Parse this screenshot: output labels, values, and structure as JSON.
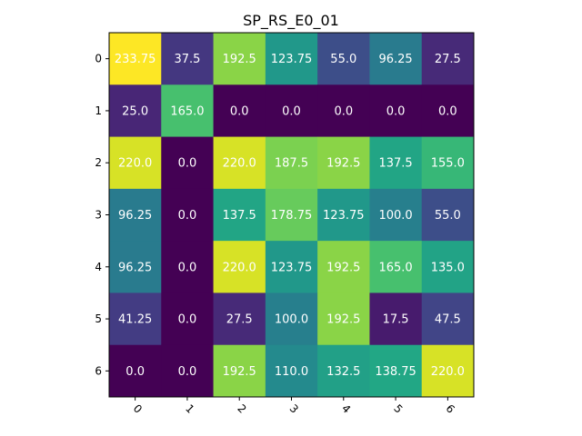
{
  "chart_data": {
    "type": "heatmap",
    "title": "SP_RS_E0_01",
    "x_labels": [
      "0",
      "1",
      "2",
      "3",
      "4",
      "5",
      "6"
    ],
    "y_labels": [
      "0",
      "1",
      "2",
      "3",
      "4",
      "5",
      "6"
    ],
    "colormap": "viridis",
    "value_range": [
      0,
      233.75
    ],
    "cell_text_color": "#ffffff",
    "values": [
      [
        233.75,
        37.5,
        192.5,
        123.75,
        55.0,
        96.25,
        27.5
      ],
      [
        25.0,
        165.0,
        0.0,
        0.0,
        0.0,
        0.0,
        0.0
      ],
      [
        220.0,
        0.0,
        220.0,
        187.5,
        192.5,
        137.5,
        155.0
      ],
      [
        96.25,
        0.0,
        137.5,
        178.75,
        123.75,
        100.0,
        55.0
      ],
      [
        96.25,
        0.0,
        220.0,
        123.75,
        192.5,
        165.0,
        135.0
      ],
      [
        41.25,
        0.0,
        27.5,
        100.0,
        192.5,
        17.5,
        47.5
      ],
      [
        0.0,
        0.0,
        192.5,
        110.0,
        132.5,
        138.75,
        220.0
      ]
    ],
    "cell_labels": [
      [
        "233.75",
        "37.5",
        "192.5",
        "123.75",
        "55.0",
        "96.25",
        "27.5"
      ],
      [
        "25.0",
        "165.0",
        "0.0",
        "0.0",
        "0.0",
        "0.0",
        "0.0"
      ],
      [
        "220.0",
        "0.0",
        "220.0",
        "187.5",
        "192.5",
        "137.5",
        "155.0"
      ],
      [
        "96.25",
        "0.0",
        "137.5",
        "178.75",
        "123.75",
        "100.0",
        "55.0"
      ],
      [
        "96.25",
        "0.0",
        "220.0",
        "123.75",
        "192.5",
        "165.0",
        "135.0"
      ],
      [
        "41.25",
        "0.0",
        "27.5",
        "100.0",
        "192.5",
        "17.5",
        "47.5"
      ],
      [
        "0.0",
        "0.0",
        "192.5",
        "110.0",
        "132.5",
        "138.75",
        "220.0"
      ]
    ]
  }
}
